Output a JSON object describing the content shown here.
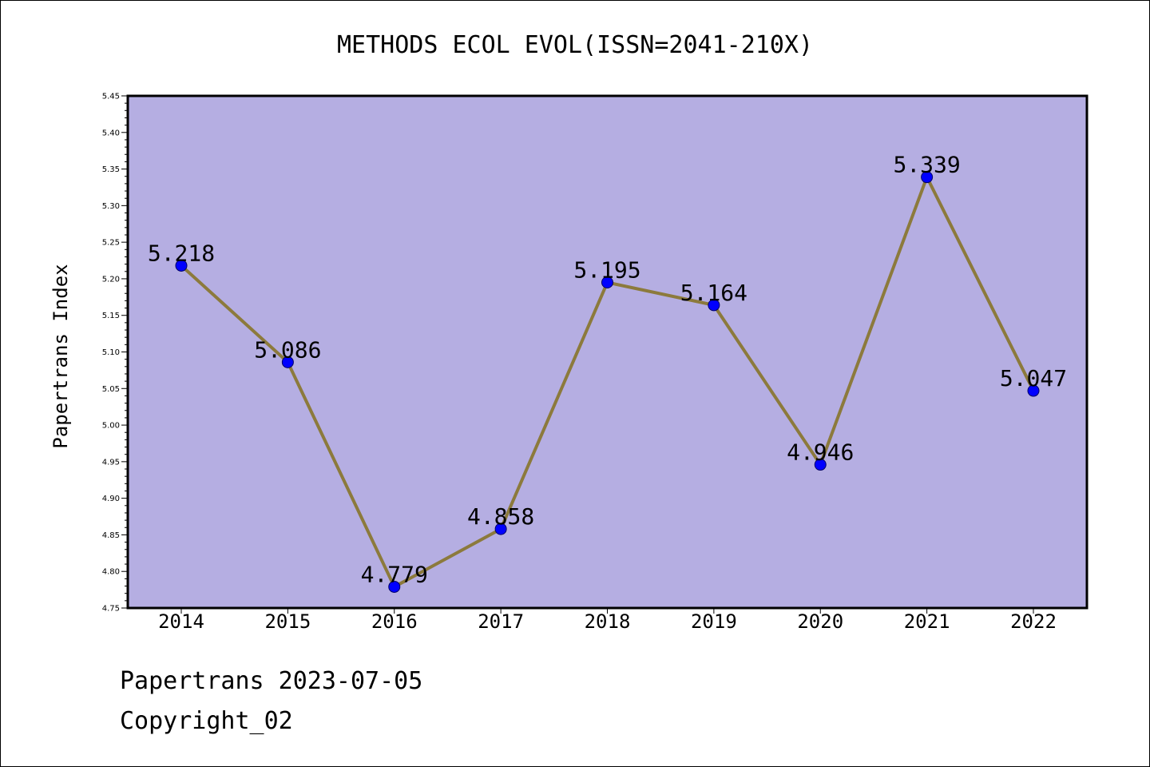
{
  "chart_data": {
    "type": "line",
    "title": "METHODS ECOL EVOL(ISSN=2041-210X)",
    "xlabel": "",
    "ylabel": "Papertrans Index",
    "categories": [
      "2014",
      "2015",
      "2016",
      "2017",
      "2018",
      "2019",
      "2020",
      "2021",
      "2022"
    ],
    "series": [
      {
        "values": [
          5.218,
          5.086,
          4.779,
          4.858,
          5.195,
          5.164,
          4.946,
          5.339,
          5.047
        ],
        "data_labels": [
          "5.218",
          "5.086",
          "4.779",
          "4.858",
          "5.195",
          "5.164",
          "4.946",
          "5.339",
          "5.047"
        ]
      }
    ],
    "ylim": [
      4.75,
      5.45
    ],
    "yticks": [
      "4.75",
      "4.80",
      "4.85",
      "4.90",
      "4.95",
      "5.00",
      "5.05",
      "5.10",
      "5.15",
      "5.20",
      "5.25",
      "5.30",
      "5.35",
      "5.40",
      "5.45"
    ],
    "grid": false,
    "legend": "none",
    "colors": {
      "plot_background": "#b5aee2",
      "line": "#8c7a3c",
      "marker": "#0000ff",
      "marker_edge": "#000066"
    }
  },
  "footer": {
    "source_line": "Papertrans 2023-07-05",
    "copyright_line": "Copyright_02"
  }
}
